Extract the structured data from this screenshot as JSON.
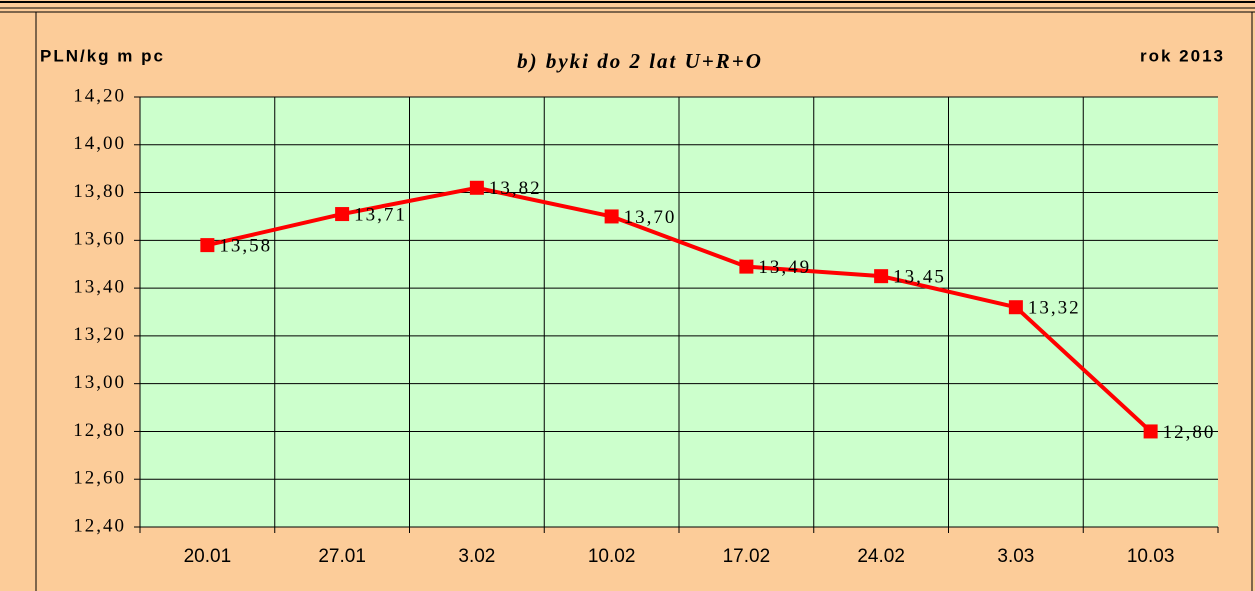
{
  "chart_data": {
    "type": "line",
    "title": "b) byki do 2 lat U+R+O",
    "y_label": "PLN/kg m pc",
    "subtitle": "rok 2013",
    "categories": [
      "20.01",
      "27.01",
      "3.02",
      "10.02",
      "17.02",
      "24.02",
      "3.03",
      "10.03"
    ],
    "series": [
      {
        "name": "byki do 2 lat U+R+O",
        "color": "#ff0000",
        "values": [
          13.58,
          13.71,
          13.82,
          13.7,
          13.49,
          13.45,
          13.32,
          12.8
        ],
        "value_labels": [
          "13,58",
          "13,71",
          "13,82",
          "13,70",
          "13,49",
          "13,45",
          "13,32",
          "12,80"
        ]
      }
    ],
    "ylim": [
      12.4,
      14.2
    ],
    "yticks": [
      {
        "value": 12.4,
        "label": "12,40"
      },
      {
        "value": 12.6,
        "label": "12,60"
      },
      {
        "value": 12.8,
        "label": "12,80"
      },
      {
        "value": 13.0,
        "label": "13,00"
      },
      {
        "value": 13.2,
        "label": "13,20"
      },
      {
        "value": 13.4,
        "label": "13,40"
      },
      {
        "value": 13.6,
        "label": "13,60"
      },
      {
        "value": 13.8,
        "label": "13,80"
      },
      {
        "value": 14.0,
        "label": "14,00"
      },
      {
        "value": 14.2,
        "label": "14,20"
      }
    ],
    "grid": true
  }
}
